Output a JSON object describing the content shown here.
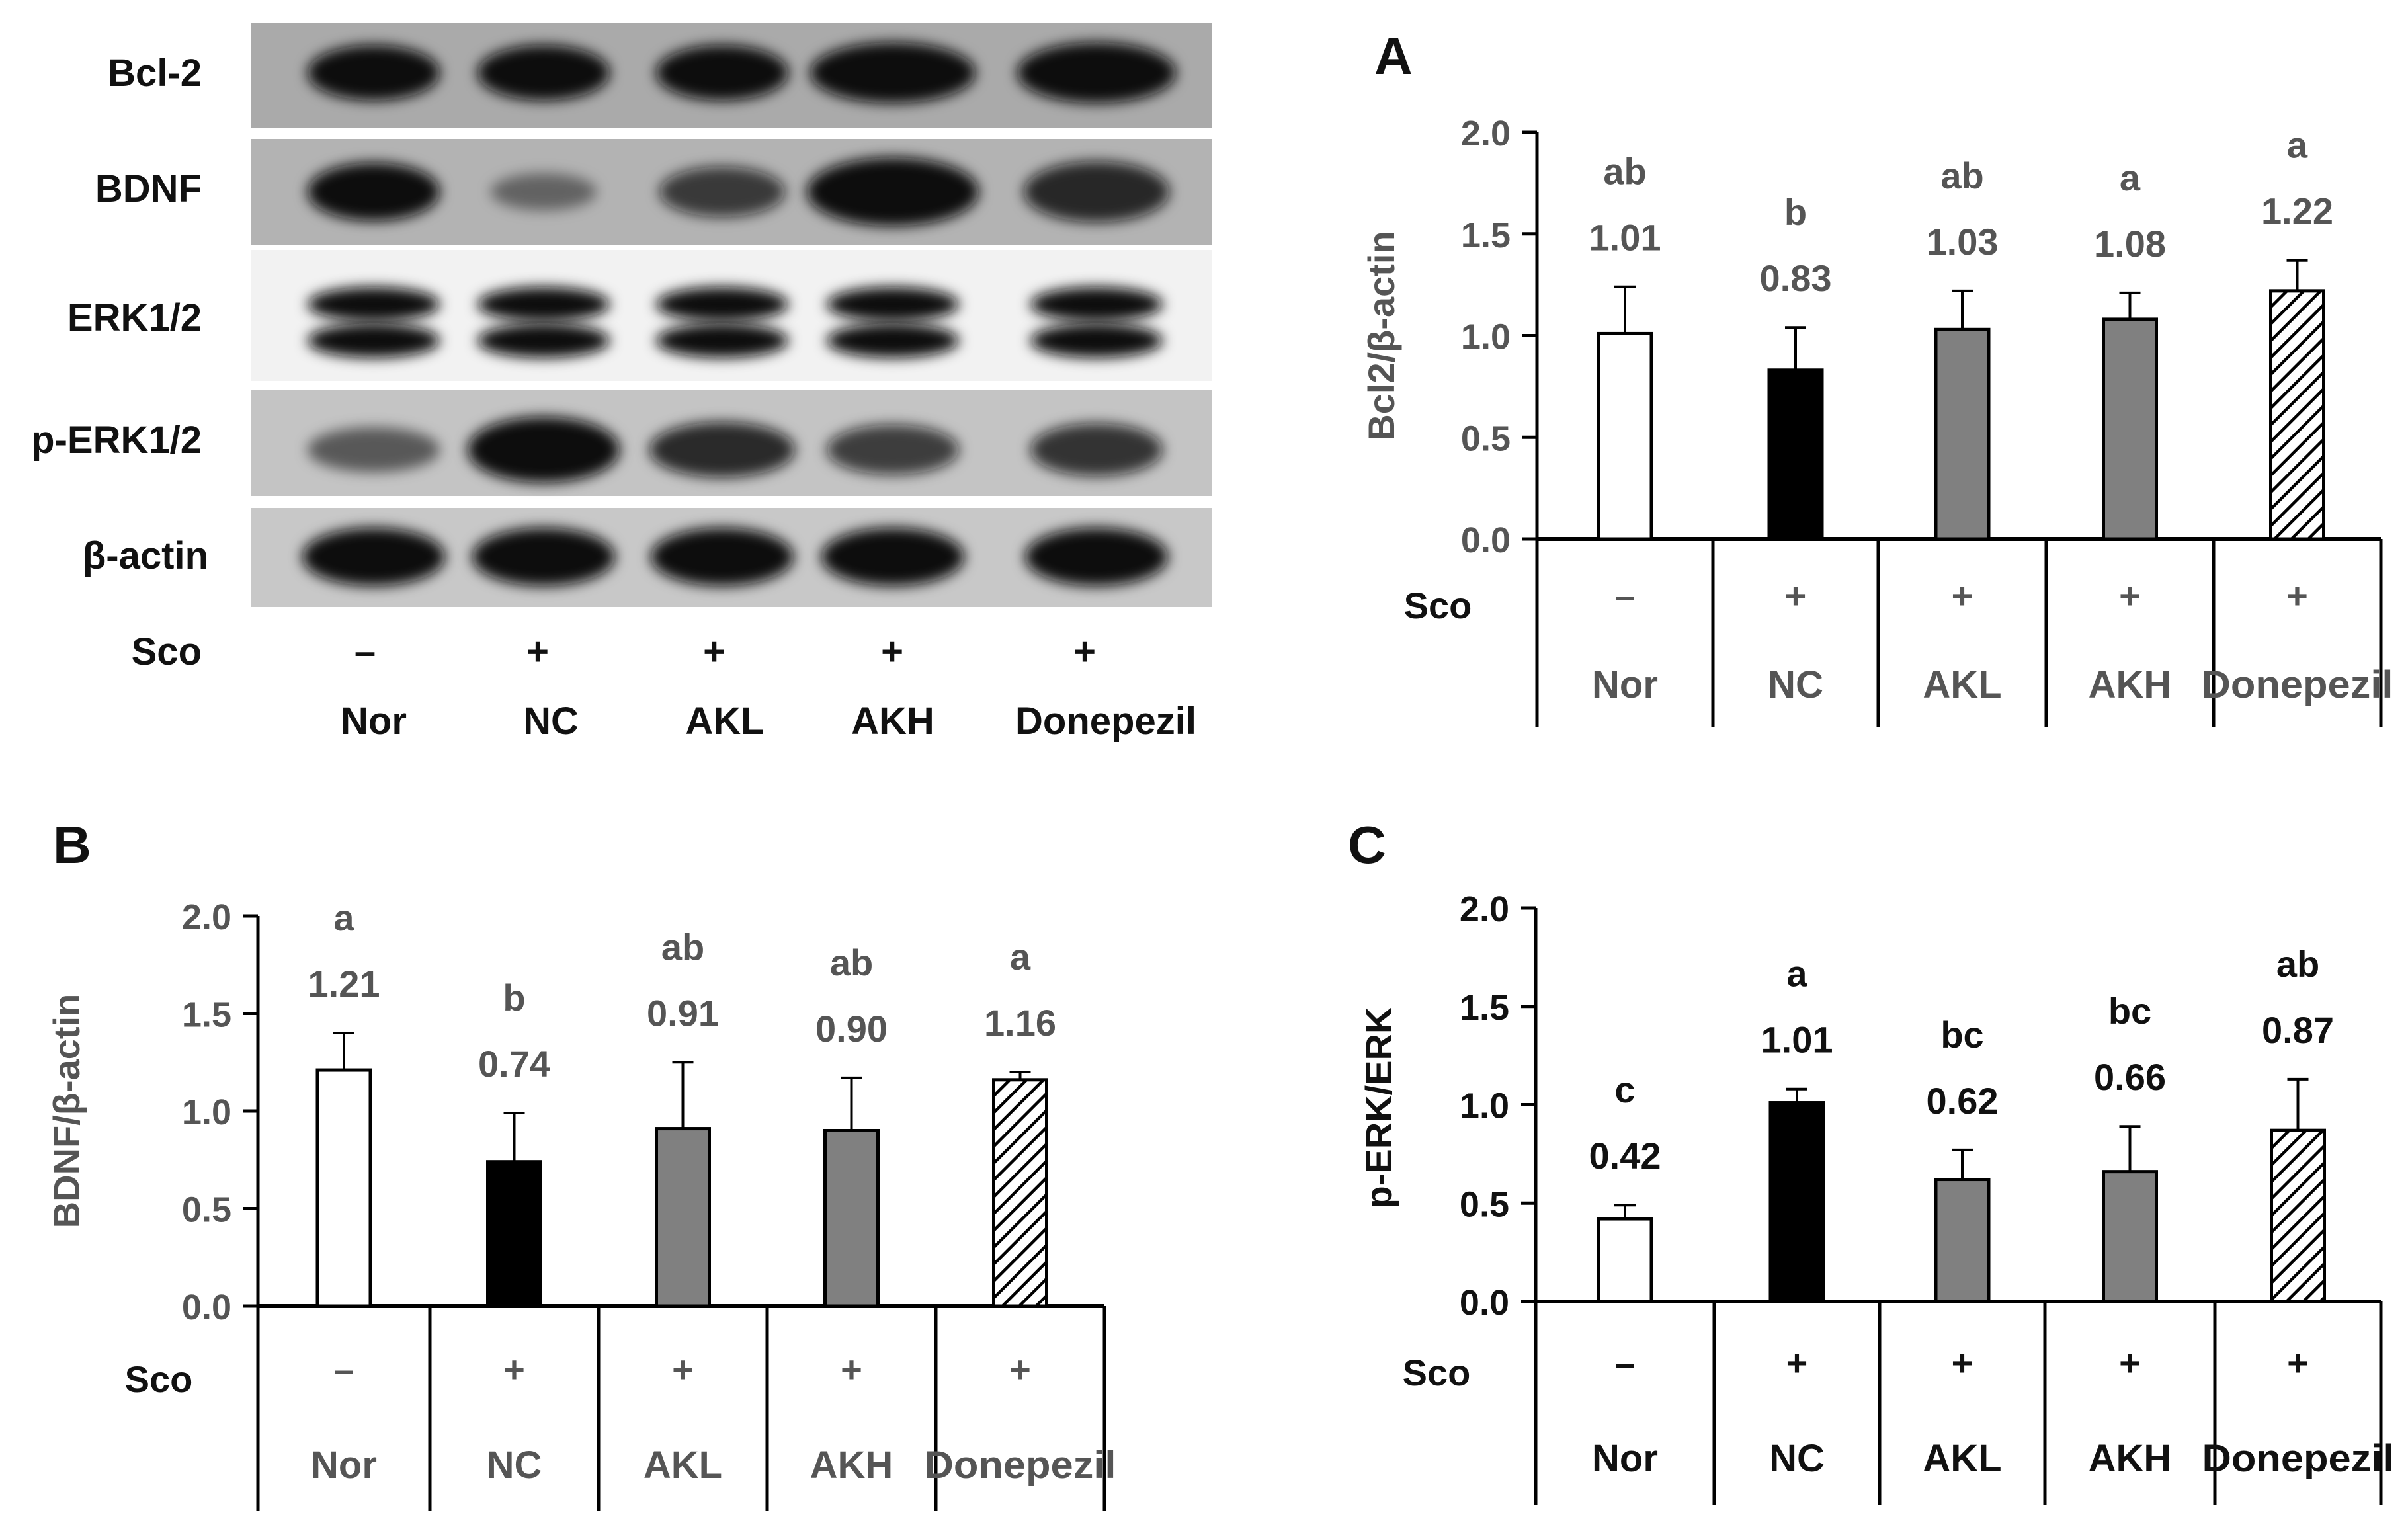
{
  "blot": {
    "protein_labels": [
      "Bcl-2",
      "BDNF",
      "ERK1/2",
      "p-ERK1/2",
      "β-actin"
    ],
    "sco_label": "Sco",
    "sco_marks": [
      "–",
      "+",
      "+",
      "+",
      "+"
    ],
    "groups": [
      "Nor",
      "NC",
      "AKL",
      "AKH",
      "Donepezil"
    ]
  },
  "colors": {
    "Nor": "#ffffff",
    "NC": "#000000",
    "AKL": "#808080",
    "AKH": "#808080",
    "Donepezil": "hatched"
  },
  "chart_data": [
    {
      "panel": "A",
      "type": "bar",
      "ylabel": "Bcl2/β-actin",
      "ylim": [
        0,
        2.0
      ],
      "yticks": [
        "0.0",
        "0.5",
        "1.0",
        "1.5",
        "2.0"
      ],
      "categories": [
        "Nor",
        "NC",
        "AKL",
        "AKH",
        "Donepezil"
      ],
      "sco": [
        "–",
        "+",
        "+",
        "+",
        "+"
      ],
      "sco_label": "Sco",
      "values": [
        1.01,
        0.83,
        1.03,
        1.08,
        1.22
      ],
      "value_labels": [
        "1.01",
        "0.83",
        "1.03",
        "1.08",
        "1.22"
      ],
      "errors": [
        0.23,
        0.21,
        0.19,
        0.13,
        0.15
      ],
      "letters": [
        "ab",
        "b",
        "ab",
        "a",
        "a"
      ]
    },
    {
      "panel": "B",
      "type": "bar",
      "ylabel": "BDNF/β-actin",
      "ylim": [
        0,
        2.0
      ],
      "yticks": [
        "0.0",
        "0.5",
        "1.0",
        "1.5",
        "2.0"
      ],
      "categories": [
        "Nor",
        "NC",
        "AKL",
        "AKH",
        "Donepezil"
      ],
      "sco": [
        "–",
        "+",
        "+",
        "+",
        "+"
      ],
      "sco_label": "Sco",
      "values": [
        1.21,
        0.74,
        0.91,
        0.9,
        1.16
      ],
      "value_labels": [
        "1.21",
        "0.74",
        "0.91",
        "0.90",
        "1.16"
      ],
      "errors": [
        0.19,
        0.25,
        0.34,
        0.27,
        0.04
      ],
      "letters": [
        "a",
        "b",
        "ab",
        "ab",
        "a"
      ]
    },
    {
      "panel": "C",
      "type": "bar",
      "ylabel": "p-ERK/ERK",
      "ylim": [
        0,
        2.0
      ],
      "yticks": [
        "0.0",
        "0.5",
        "1.0",
        "1.5",
        "2.0"
      ],
      "categories": [
        "Nor",
        "NC",
        "AKL",
        "AKH",
        "Donepezil"
      ],
      "sco": [
        "–",
        "+",
        "+",
        "+",
        "+"
      ],
      "sco_label": "Sco",
      "values": [
        0.42,
        1.01,
        0.62,
        0.66,
        0.87
      ],
      "value_labels": [
        "0.42",
        "1.01",
        "0.62",
        "0.66",
        "0.87"
      ],
      "errors": [
        0.07,
        0.07,
        0.15,
        0.23,
        0.26
      ],
      "letters": [
        "c",
        "a",
        "bc",
        "bc",
        "ab"
      ]
    }
  ]
}
